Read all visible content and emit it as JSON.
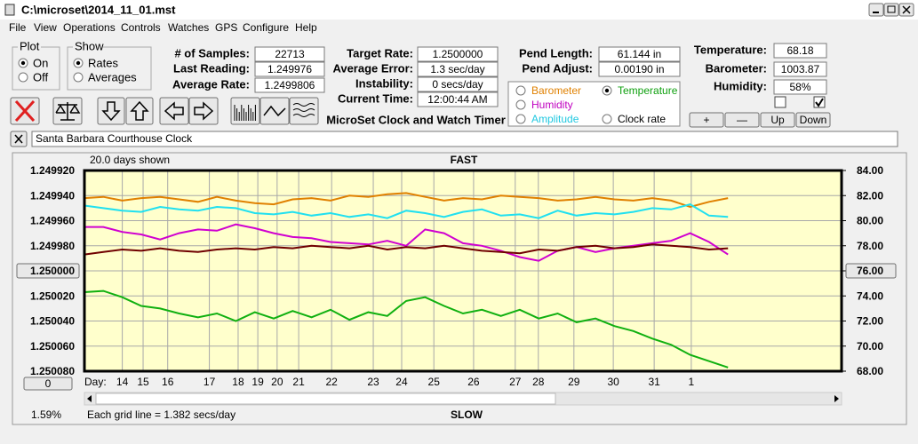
{
  "window": {
    "title": "C:\\microset\\2014_11_01.mst"
  },
  "menu": [
    "File",
    "View",
    "Operations",
    "Controls",
    "Watches",
    "GPS",
    "Configure",
    "Help"
  ],
  "plot": {
    "label": "Plot",
    "options": [
      "On",
      "Off"
    ],
    "selected": 0
  },
  "show": {
    "label": "Show",
    "options": [
      "Rates",
      "Averages"
    ],
    "selected": 0
  },
  "columns": [
    [
      {
        "label": "# of Samples:",
        "value": "22713"
      },
      {
        "label": "Last Reading:",
        "value": "1.249976"
      },
      {
        "label": "Average Rate:",
        "value": "1.2499806"
      }
    ],
    [
      {
        "label": "Target Rate:",
        "value": "1.2500000"
      },
      {
        "label": "Average Error:",
        "value": "1.3 sec/day"
      },
      {
        "label": "Instability:",
        "value": "0 secs/day"
      },
      {
        "label": "Current Time:",
        "value": "12:00:44 AM"
      }
    ],
    [
      {
        "label": "Pend Length:",
        "value": "61.144 in"
      },
      {
        "label": "Pend Adjust:",
        "value": "0.00190 in"
      }
    ],
    [
      {
        "label": "Temperature:",
        "value": "68.18"
      },
      {
        "label": "Barometer:",
        "value": "1003.87"
      },
      {
        "label": "Humidity:",
        "value": "58%"
      }
    ]
  ],
  "checkboxes": [
    false,
    true
  ],
  "series_select": [
    {
      "label": "Barometer",
      "color": "#e08000",
      "checked": false
    },
    {
      "label": "Temperature",
      "color": "#10a010",
      "checked": true
    },
    {
      "label": "Humidity",
      "color": "#c000c0",
      "checked": false
    },
    {
      "label": "Amplitude",
      "color": "#20c8e0",
      "checked": false
    },
    {
      "label": "Clock rate",
      "color": "#000000",
      "checked": false
    }
  ],
  "app_title": "MicroSet Clock and Watch Timer",
  "buttons": [
    "+",
    "—",
    "Up",
    "Down"
  ],
  "clock_name": "Santa Barbara Courthouse Clock",
  "chart_data": {
    "type": "line",
    "top_label": "FAST",
    "bottom_label": "SLOW",
    "span_label": "20.0 days shown",
    "grid_note": "Each grid line = 1.382 secs/day",
    "corner_value": "1.59%",
    "scroll_button": "0",
    "xlabel": "Day:",
    "grid": true,
    "xlim": [
      0,
      20
    ],
    "xticks": [
      {
        "value": 1.0,
        "label": "14"
      },
      {
        "value": 1.55,
        "label": "15"
      },
      {
        "value": 2.2,
        "label": "16"
      },
      {
        "value": 3.3,
        "label": "17"
      },
      {
        "value": 4.06,
        "label": "18"
      },
      {
        "value": 4.58,
        "label": "19"
      },
      {
        "value": 5.09,
        "label": "20"
      },
      {
        "value": 5.66,
        "label": "21"
      },
      {
        "value": 6.53,
        "label": "22"
      },
      {
        "value": 7.63,
        "label": "23"
      },
      {
        "value": 8.38,
        "label": "24"
      },
      {
        "value": 9.23,
        "label": "25"
      },
      {
        "value": 10.28,
        "label": "26"
      },
      {
        "value": 11.38,
        "label": "27"
      },
      {
        "value": 11.99,
        "label": "28"
      },
      {
        "value": 12.93,
        "label": "29"
      },
      {
        "value": 13.97,
        "label": "30"
      },
      {
        "value": 15.05,
        "label": "31"
      },
      {
        "value": 16.03,
        "label": "1"
      }
    ],
    "ylim": [
      1.25008,
      1.24992
    ],
    "yticks": [
      {
        "value": 1.24992,
        "label": "1.249920"
      },
      {
        "value": 1.24994,
        "label": "1.249940"
      },
      {
        "value": 1.24996,
        "label": "1.249960"
      },
      {
        "value": 1.24998,
        "label": "1.249980"
      },
      {
        "value": 1.25,
        "label": "1.250000"
      },
      {
        "value": 1.25002,
        "label": "1.250020"
      },
      {
        "value": 1.25004,
        "label": "1.250040"
      },
      {
        "value": 1.25006,
        "label": "1.250060"
      },
      {
        "value": 1.25008,
        "label": "1.250080"
      }
    ],
    "y2lim": [
      68,
      84
    ],
    "y2ticks": [
      {
        "value": 84,
        "label": "84.00"
      },
      {
        "value": 82,
        "label": "82.00"
      },
      {
        "value": 80,
        "label": "80.00"
      },
      {
        "value": 78,
        "label": "78.00"
      },
      {
        "value": 76,
        "label": "76.00"
      },
      {
        "value": 74,
        "label": "74.00"
      },
      {
        "value": 72,
        "label": "72.00"
      },
      {
        "value": 70,
        "label": "70.00"
      },
      {
        "value": 68,
        "label": "68.00"
      }
    ],
    "x": [
      0,
      0.5,
      1,
      1.5,
      2,
      2.5,
      3,
      3.5,
      4,
      4.5,
      5,
      5.5,
      6,
      6.5,
      7,
      7.5,
      8,
      8.5,
      9,
      9.5,
      10,
      10.5,
      11,
      11.5,
      12,
      12.5,
      13,
      13.5,
      14,
      14.5,
      15,
      15.5,
      16,
      16.5,
      17
    ],
    "series": [
      {
        "color": "#e08000",
        "axis": "y2",
        "values": [
          81.8,
          81.9,
          81.6,
          81.8,
          81.9,
          81.7,
          81.5,
          81.9,
          81.6,
          81.4,
          81.3,
          81.7,
          81.8,
          81.6,
          82.0,
          81.9,
          82.1,
          82.2,
          81.9,
          81.6,
          81.8,
          81.7,
          82.0,
          81.9,
          81.8,
          81.6,
          81.7,
          81.9,
          81.7,
          81.6,
          81.8,
          81.6,
          81.1,
          81.5,
          81.8
        ]
      },
      {
        "color": "#20e0f0",
        "axis": "y2",
        "values": [
          81.2,
          81.0,
          80.8,
          80.7,
          81.1,
          80.9,
          80.8,
          81.1,
          81.0,
          80.6,
          80.5,
          80.7,
          80.4,
          80.6,
          80.3,
          80.5,
          80.2,
          80.8,
          80.6,
          80.3,
          80.7,
          80.9,
          80.4,
          80.5,
          80.2,
          80.8,
          80.4,
          80.6,
          80.5,
          80.7,
          81.0,
          80.9,
          81.3,
          80.4,
          80.3
        ]
      },
      {
        "color": "#d000d0",
        "axis": "y2",
        "values": [
          79.5,
          79.5,
          79.1,
          78.9,
          78.5,
          79.0,
          79.3,
          79.2,
          79.7,
          79.4,
          79.0,
          78.7,
          78.6,
          78.3,
          78.2,
          78.1,
          78.4,
          78.0,
          79.3,
          79.0,
          78.2,
          78.0,
          77.6,
          77.1,
          76.8,
          77.6,
          77.9,
          77.5,
          77.8,
          78.0,
          78.2,
          78.4,
          79.0,
          78.3,
          77.3
        ]
      },
      {
        "color": "#700000",
        "axis": "y",
        "values": [
          1.249987,
          1.249985,
          1.249983,
          1.249984,
          1.249982,
          1.249984,
          1.249985,
          1.249983,
          1.249982,
          1.249983,
          1.249981,
          1.249982,
          1.24998,
          1.249981,
          1.249982,
          1.24998,
          1.249983,
          1.249981,
          1.249982,
          1.24998,
          1.249982,
          1.249984,
          1.249985,
          1.249986,
          1.249983,
          1.249984,
          1.249981,
          1.24998,
          1.249982,
          1.249981,
          1.249979,
          1.24998,
          1.249981,
          1.249983,
          1.249982
        ]
      },
      {
        "color": "#10b010",
        "axis": "y2",
        "values": [
          74.3,
          74.4,
          73.9,
          73.2,
          73.0,
          72.6,
          72.3,
          72.6,
          72.0,
          72.7,
          72.2,
          72.8,
          72.3,
          72.9,
          72.1,
          72.7,
          72.4,
          73.6,
          73.9,
          73.2,
          72.6,
          72.9,
          72.4,
          72.9,
          72.2,
          72.6,
          71.9,
          72.2,
          71.6,
          71.2,
          70.6,
          70.1,
          69.3,
          68.8,
          68.3
        ]
      }
    ]
  }
}
